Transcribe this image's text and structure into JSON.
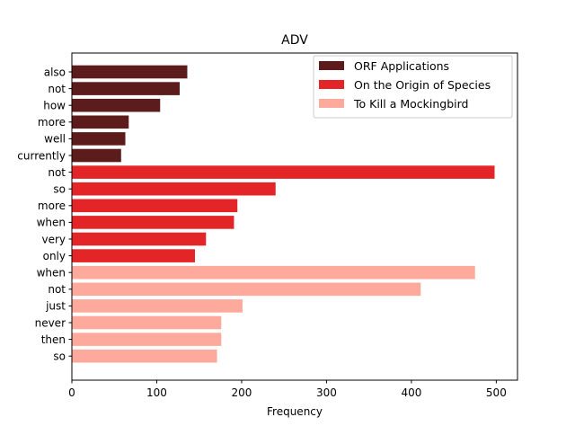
{
  "chart_data": {
    "type": "bar",
    "orientation": "horizontal",
    "title": "ADV",
    "xlabel": "Frequency",
    "ylabel": "",
    "xlim": [
      0,
      525
    ],
    "xticks": [
      0,
      100,
      200,
      300,
      400,
      500
    ],
    "grid": false,
    "legend_position": "top-right",
    "series": [
      {
        "name": "ORF Applications",
        "color": "#5c1c1c",
        "categories": [
          "also",
          "not",
          "how",
          "more",
          "well",
          "currently"
        ],
        "values": [
          136,
          127,
          104,
          67,
          63,
          58
        ]
      },
      {
        "name": "On the Origin of Species",
        "color": "#e32527",
        "categories": [
          "not",
          "so",
          "more",
          "when",
          "very",
          "only"
        ],
        "values": [
          498,
          240,
          195,
          191,
          158,
          145
        ]
      },
      {
        "name": "To Kill a Mockingbird",
        "color": "#fdaa9c",
        "categories": [
          "when",
          "not",
          "just",
          "never",
          "then",
          "so"
        ],
        "values": [
          475,
          411,
          201,
          176,
          176,
          171
        ]
      }
    ]
  }
}
